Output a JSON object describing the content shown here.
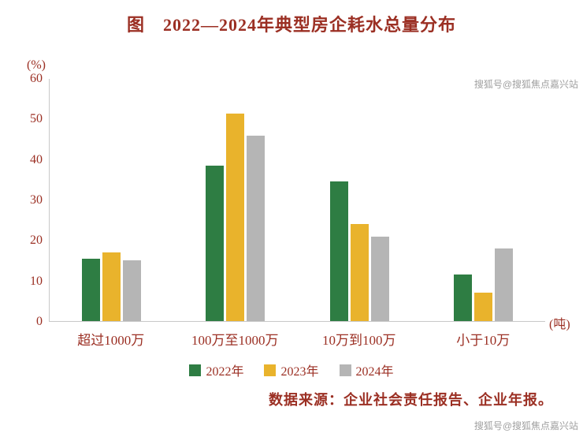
{
  "title": "图　2022—2024年典型房企耗水总量分布",
  "chart_data": {
    "type": "bar",
    "categories": [
      "超过1000万",
      "100万至1000万",
      "10万到100万",
      "小于10万"
    ],
    "series": [
      {
        "name": "2022年",
        "color": "#2e7d43",
        "values": [
          15.5,
          38.5,
          34.5,
          11.5
        ]
      },
      {
        "name": "2023年",
        "color": "#e9b32c",
        "values": [
          17,
          51.5,
          24,
          7
        ]
      },
      {
        "name": "2024年",
        "color": "#b5b5b5",
        "values": [
          15,
          46,
          21,
          18
        ]
      }
    ],
    "ylabel": "(%)",
    "xunit": "(吨)",
    "ylim": [
      0,
      60
    ],
    "yticks": [
      0,
      10,
      20,
      30,
      40,
      50,
      60
    ],
    "grid": false,
    "legend_position": "bottom"
  },
  "source": "数据来源：企业社会责任报告、企业年报。",
  "watermark_top": "搜狐号@搜狐焦点嘉兴站",
  "watermark_bottom": "搜狐号@搜狐焦点嘉兴站",
  "colors": {
    "text": "#9b2f23",
    "axis": "#c8c8c8",
    "watermark": "#8f8f8f"
  }
}
